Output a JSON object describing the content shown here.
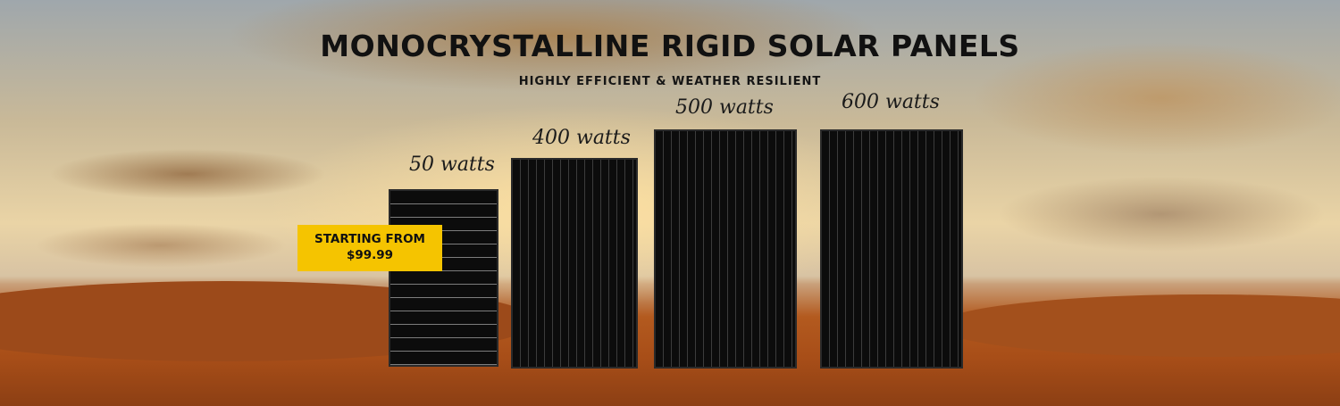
{
  "header": {
    "title": "MONOCRYSTALLINE RIGID SOLAR PANELS",
    "subtitle": "HIGHLY EFFICIENT & WEATHER RESILIENT"
  },
  "panels": [
    {
      "label": "50 watts"
    },
    {
      "label": "400 watts"
    },
    {
      "label": "500 watts"
    },
    {
      "label": "600 watts"
    }
  ],
  "badge": {
    "line1": "STARTING FROM",
    "line2": "$99.99"
  }
}
